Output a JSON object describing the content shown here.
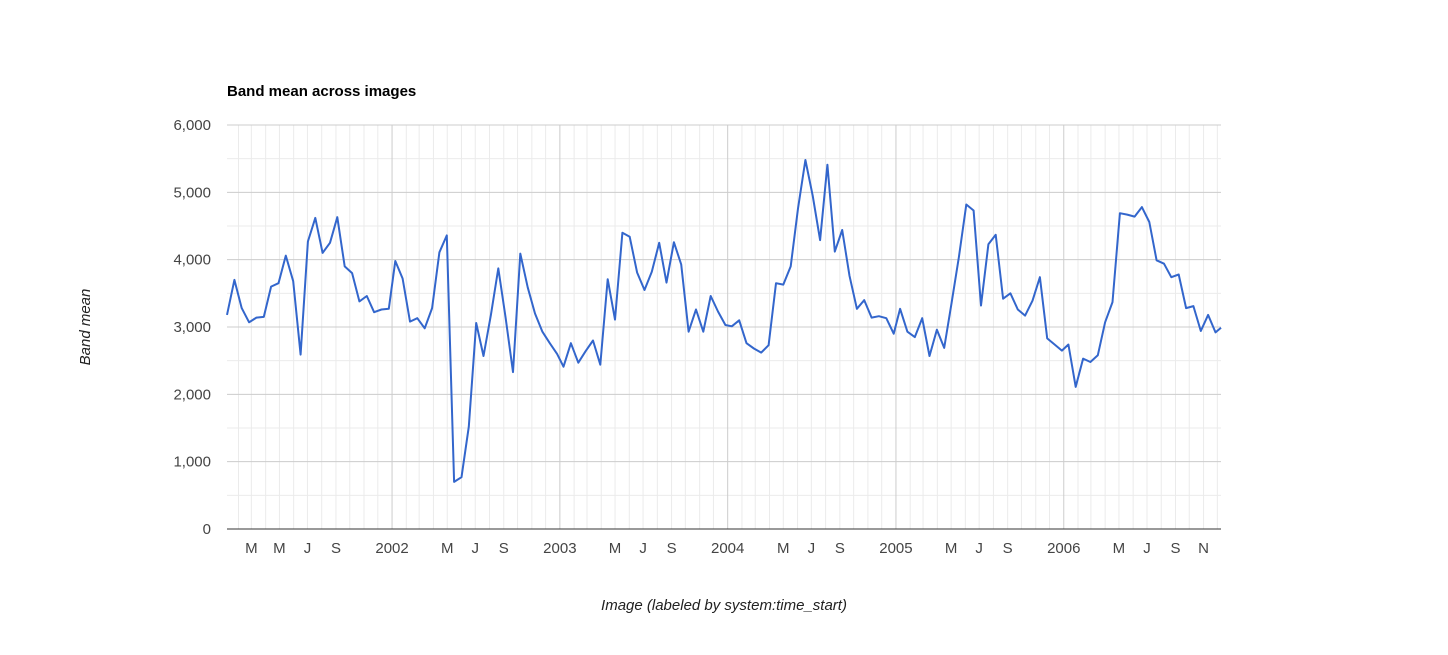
{
  "chart_data": {
    "type": "line",
    "title": "Band mean across images",
    "xlabel": "Image (labeled by system:time_start)",
    "ylabel": "Band mean",
    "ylim": [
      0,
      6000
    ],
    "yticks": [
      "0",
      "1,000",
      "2,000",
      "3,000",
      "4,000",
      "5,000",
      "6,000"
    ],
    "xlim": [
      "2001-01-07",
      "2006-12-09"
    ],
    "xticks": [
      {
        "label": "M",
        "date": "2001-03-01"
      },
      {
        "label": "M",
        "date": "2001-05-01"
      },
      {
        "label": "J",
        "date": "2001-07-01"
      },
      {
        "label": "S",
        "date": "2001-09-01"
      },
      {
        "label": "2002",
        "date": "2002-01-01"
      },
      {
        "label": "M",
        "date": "2002-05-01"
      },
      {
        "label": "J",
        "date": "2002-07-01"
      },
      {
        "label": "S",
        "date": "2002-09-01"
      },
      {
        "label": "2003",
        "date": "2003-01-01"
      },
      {
        "label": "M",
        "date": "2003-05-01"
      },
      {
        "label": "J",
        "date": "2003-07-01"
      },
      {
        "label": "S",
        "date": "2003-09-01"
      },
      {
        "label": "2004",
        "date": "2004-01-01"
      },
      {
        "label": "M",
        "date": "2004-05-01"
      },
      {
        "label": "J",
        "date": "2004-07-01"
      },
      {
        "label": "S",
        "date": "2004-09-01"
      },
      {
        "label": "2005",
        "date": "2005-01-01"
      },
      {
        "label": "M",
        "date": "2005-05-01"
      },
      {
        "label": "J",
        "date": "2005-07-01"
      },
      {
        "label": "S",
        "date": "2005-09-01"
      },
      {
        "label": "2006",
        "date": "2006-01-01"
      },
      {
        "label": "M",
        "date": "2006-05-01"
      },
      {
        "label": "J",
        "date": "2006-07-01"
      },
      {
        "label": "S",
        "date": "2006-09-01"
      },
      {
        "label": "N",
        "date": "2006-11-01"
      }
    ],
    "grid": true,
    "legend": "none",
    "series": [
      {
        "color": "#3366cc",
        "points": [
          [
            "2001-01-07",
            3180
          ],
          [
            "2001-01-23",
            3700
          ],
          [
            "2001-02-08",
            3280
          ],
          [
            "2001-02-24",
            3070
          ],
          [
            "2001-03-12",
            3140
          ],
          [
            "2001-03-28",
            3150
          ],
          [
            "2001-04-13",
            3600
          ],
          [
            "2001-04-29",
            3650
          ],
          [
            "2001-05-15",
            4060
          ],
          [
            "2001-05-31",
            3680
          ],
          [
            "2001-06-16",
            2590
          ],
          [
            "2001-07-02",
            4270
          ],
          [
            "2001-07-18",
            4620
          ],
          [
            "2001-08-03",
            4100
          ],
          [
            "2001-08-19",
            4250
          ],
          [
            "2001-09-04",
            4630
          ],
          [
            "2001-09-20",
            3900
          ],
          [
            "2001-10-06",
            3800
          ],
          [
            "2001-10-22",
            3380
          ],
          [
            "2001-11-07",
            3460
          ],
          [
            "2001-11-23",
            3220
          ],
          [
            "2001-12-09",
            3260
          ],
          [
            "2001-12-25",
            3270
          ],
          [
            "2002-01-08",
            3980
          ],
          [
            "2002-01-24",
            3720
          ],
          [
            "2002-02-09",
            3080
          ],
          [
            "2002-02-25",
            3130
          ],
          [
            "2002-03-13",
            2980
          ],
          [
            "2002-03-29",
            3280
          ],
          [
            "2002-04-14",
            4110
          ],
          [
            "2002-04-30",
            4360
          ],
          [
            "2002-05-16",
            700
          ],
          [
            "2002-06-01",
            770
          ],
          [
            "2002-06-17",
            1520
          ],
          [
            "2002-07-03",
            3060
          ],
          [
            "2002-07-19",
            2570
          ],
          [
            "2002-08-04",
            3180
          ],
          [
            "2002-08-20",
            3870
          ],
          [
            "2002-09-05",
            3140
          ],
          [
            "2002-09-21",
            2330
          ],
          [
            "2002-10-07",
            4090
          ],
          [
            "2002-10-23",
            3590
          ],
          [
            "2002-11-08",
            3200
          ],
          [
            "2002-11-24",
            2930
          ],
          [
            "2002-12-10",
            2760
          ],
          [
            "2002-12-26",
            2600
          ],
          [
            "2003-01-09",
            2410
          ],
          [
            "2003-01-25",
            2760
          ],
          [
            "2003-02-10",
            2470
          ],
          [
            "2003-02-26",
            2640
          ],
          [
            "2003-03-14",
            2800
          ],
          [
            "2003-03-30",
            2440
          ],
          [
            "2003-04-15",
            3710
          ],
          [
            "2003-05-01",
            3110
          ],
          [
            "2003-05-17",
            4400
          ],
          [
            "2003-06-02",
            4340
          ],
          [
            "2003-06-18",
            3810
          ],
          [
            "2003-07-04",
            3550
          ],
          [
            "2003-07-20",
            3820
          ],
          [
            "2003-08-05",
            4250
          ],
          [
            "2003-08-21",
            3660
          ],
          [
            "2003-09-06",
            4260
          ],
          [
            "2003-09-22",
            3930
          ],
          [
            "2003-10-08",
            2930
          ],
          [
            "2003-10-24",
            3260
          ],
          [
            "2003-11-09",
            2930
          ],
          [
            "2003-11-25",
            3460
          ],
          [
            "2003-12-11",
            3230
          ],
          [
            "2003-12-27",
            3030
          ],
          [
            "2004-01-10",
            3010
          ],
          [
            "2004-01-26",
            3100
          ],
          [
            "2004-02-11",
            2760
          ],
          [
            "2004-02-27",
            2680
          ],
          [
            "2004-03-14",
            2620
          ],
          [
            "2004-03-30",
            2730
          ],
          [
            "2004-04-15",
            3650
          ],
          [
            "2004-05-01",
            3630
          ],
          [
            "2004-05-17",
            3900
          ],
          [
            "2004-06-02",
            4760
          ],
          [
            "2004-06-18",
            5480
          ],
          [
            "2004-07-04",
            4950
          ],
          [
            "2004-07-20",
            4290
          ],
          [
            "2004-08-05",
            5410
          ],
          [
            "2004-08-21",
            4120
          ],
          [
            "2004-09-06",
            4440
          ],
          [
            "2004-09-22",
            3760
          ],
          [
            "2004-10-08",
            3270
          ],
          [
            "2004-10-24",
            3400
          ],
          [
            "2004-11-09",
            3140
          ],
          [
            "2004-11-25",
            3160
          ],
          [
            "2004-12-11",
            3130
          ],
          [
            "2004-12-27",
            2900
          ],
          [
            "2005-01-10",
            3270
          ],
          [
            "2005-01-26",
            2930
          ],
          [
            "2005-02-11",
            2850
          ],
          [
            "2005-02-27",
            3130
          ],
          [
            "2005-03-15",
            2570
          ],
          [
            "2005-03-31",
            2960
          ],
          [
            "2005-04-16",
            2690
          ],
          [
            "2005-05-02",
            3360
          ],
          [
            "2005-05-18",
            4040
          ],
          [
            "2005-06-03",
            4820
          ],
          [
            "2005-06-19",
            4730
          ],
          [
            "2005-07-05",
            3320
          ],
          [
            "2005-07-21",
            4230
          ],
          [
            "2005-08-06",
            4370
          ],
          [
            "2005-08-22",
            3420
          ],
          [
            "2005-09-07",
            3500
          ],
          [
            "2005-09-23",
            3260
          ],
          [
            "2005-10-09",
            3170
          ],
          [
            "2005-10-25",
            3390
          ],
          [
            "2005-11-10",
            3740
          ],
          [
            "2005-11-26",
            2830
          ],
          [
            "2005-12-12",
            2740
          ],
          [
            "2005-12-28",
            2650
          ],
          [
            "2006-01-11",
            2740
          ],
          [
            "2006-01-27",
            2110
          ],
          [
            "2006-02-12",
            2530
          ],
          [
            "2006-02-28",
            2480
          ],
          [
            "2006-03-16",
            2580
          ],
          [
            "2006-04-01",
            3070
          ],
          [
            "2006-04-17",
            3370
          ],
          [
            "2006-05-03",
            4690
          ],
          [
            "2006-05-19",
            4670
          ],
          [
            "2006-06-04",
            4640
          ],
          [
            "2006-06-20",
            4780
          ],
          [
            "2006-07-06",
            4560
          ],
          [
            "2006-07-22",
            3990
          ],
          [
            "2006-08-07",
            3940
          ],
          [
            "2006-08-23",
            3740
          ],
          [
            "2006-09-08",
            3780
          ],
          [
            "2006-09-24",
            3280
          ],
          [
            "2006-10-10",
            3310
          ],
          [
            "2006-10-26",
            2940
          ],
          [
            "2006-11-11",
            3180
          ],
          [
            "2006-11-27",
            2920
          ],
          [
            "2006-12-09",
            2990
          ]
        ]
      }
    ]
  }
}
